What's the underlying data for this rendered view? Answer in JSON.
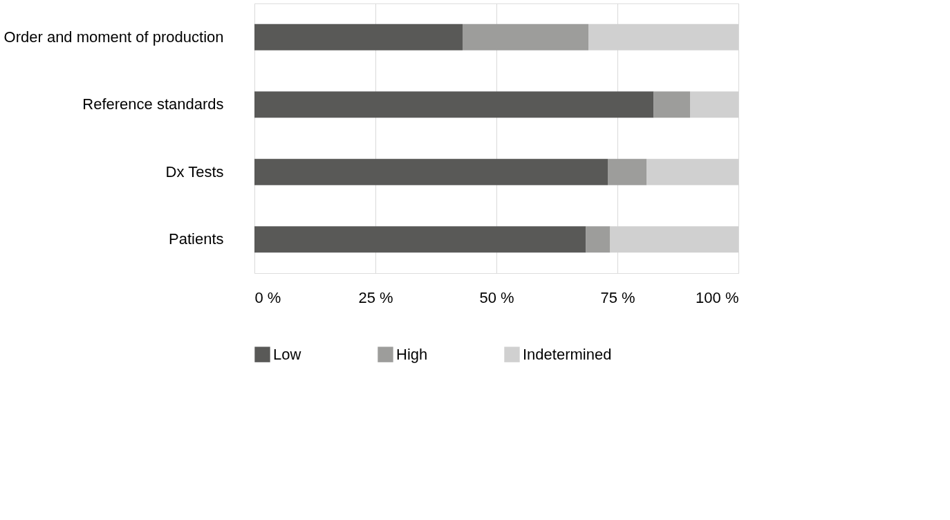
{
  "chart_data": {
    "type": "bar",
    "orientation": "horizontal",
    "stacked": true,
    "categories": [
      "Order and moment of production",
      "Reference standards",
      "Dx Tests",
      "Patients"
    ],
    "series": [
      {
        "name": "Low",
        "color": "#595957",
        "values": [
          43,
          82.5,
          73,
          68.5
        ]
      },
      {
        "name": "High",
        "color": "#9d9d9b",
        "values": [
          26,
          7.5,
          8,
          5
        ]
      },
      {
        "name": "Indetermined",
        "color": "#d0d0d0",
        "values": [
          31,
          10,
          19,
          26.5
        ]
      }
    ],
    "xlim": [
      0,
      100
    ],
    "xticks": [
      {
        "value": 0,
        "label": "0 %"
      },
      {
        "value": 25,
        "label": "25 %"
      },
      {
        "value": 50,
        "label": "50 %"
      },
      {
        "value": 75,
        "label": "75 %"
      },
      {
        "value": 100,
        "label": "100 %"
      }
    ],
    "grid": "x",
    "legend": "bottom"
  }
}
